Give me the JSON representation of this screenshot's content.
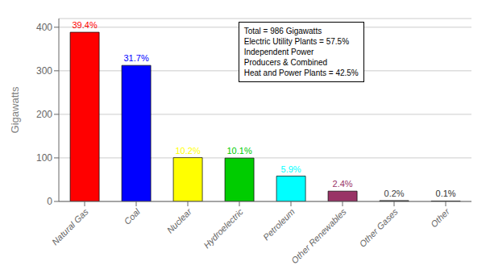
{
  "chart_data": {
    "type": "bar",
    "categories": [
      "Natural Gas",
      "Coal",
      "Nuclear",
      "Hydroelectric",
      "Petroleum",
      "Other Renewables",
      "Other Gases",
      "Other"
    ],
    "values": [
      388.5,
      312.4,
      100.6,
      99.6,
      58.2,
      23.7,
      2.0,
      1.0
    ],
    "percentages": [
      "39.4%",
      "31.7%",
      "10.2%",
      "10.1%",
      "5.9%",
      "2.4%",
      "0.2%",
      "0.1%"
    ],
    "colors": [
      "#ff0000",
      "#0000ff",
      "#ffff00",
      "#00cc00",
      "#00ffff",
      "#993366",
      "#404040",
      "#303030"
    ],
    "ylabel": "Gigawatts",
    "ylim": [
      0,
      420
    ],
    "yticks": [
      0,
      100,
      200,
      300,
      400
    ],
    "annotation": "Total = 986 Gigawatts\nElectric Utility Plants = 57.5%\nIndependent Power\nProducers & Combined\nHeat and Power Plants = 42.5%",
    "grid": true
  }
}
